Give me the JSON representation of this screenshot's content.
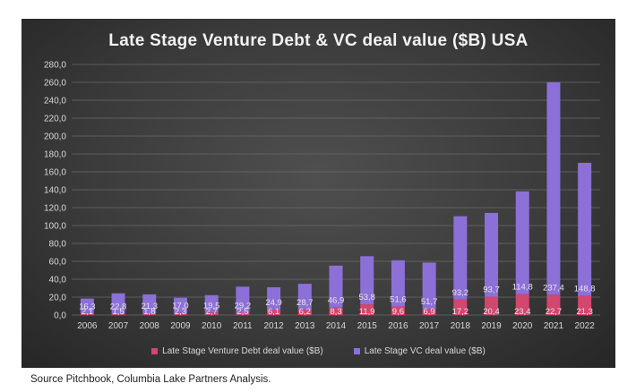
{
  "chart_data": {
    "type": "bar",
    "stacked": true,
    "title": "Late Stage Venture Debt & VC deal value ($B) USA",
    "categories": [
      "2006",
      "2007",
      "2008",
      "2009",
      "2010",
      "2011",
      "2012",
      "2013",
      "2014",
      "2015",
      "2016",
      "2017",
      "2018",
      "2019",
      "2020",
      "2021",
      "2022"
    ],
    "series": [
      {
        "name": "Late Stage Venture Debt deal value ($B)",
        "color": "#d2476e",
        "values": [
          2.1,
          1.5,
          1.8,
          2.3,
          2.7,
          2.5,
          6.1,
          6.2,
          8.3,
          11.9,
          9.6,
          6.9,
          17.2,
          20.4,
          23.4,
          22.7,
          21.3
        ],
        "labels": [
          "2,1",
          "1,5",
          "1,8",
          "2,3",
          "2,7",
          "2,5",
          "6,1",
          "6,2",
          "8,3",
          "11,9",
          "9,6",
          "6,9",
          "17,2",
          "20,4",
          "23,4",
          "22,7",
          "21,3"
        ]
      },
      {
        "name": "Late Stage VC deal value ($B)",
        "color": "#8c70d8",
        "values": [
          16.3,
          22.8,
          21.3,
          17.0,
          19.5,
          29.2,
          24.9,
          28.7,
          46.9,
          53.8,
          51.6,
          51.7,
          93.2,
          93.7,
          114.8,
          237.4,
          148.8
        ],
        "labels": [
          "16,3",
          "22,8",
          "21,3",
          "17,0",
          "19,5",
          "29,2",
          "24,9",
          "28,7",
          "46,9",
          "53,8",
          "51,6",
          "51,7",
          "93,2",
          "93,7",
          "114,8",
          "237,4",
          "148,8"
        ]
      }
    ],
    "ylim": [
      0,
      280
    ],
    "yticks": [
      "0,0",
      "20,0",
      "40,0",
      "60,0",
      "80,0",
      "100,0",
      "120,0",
      "140,0",
      "160,0",
      "180,0",
      "200,0",
      "220,0",
      "240,0",
      "260,0",
      "280,0"
    ],
    "grid": true,
    "legend_position": "bottom"
  },
  "source_note": "Source Pitchbook, Columbia Lake Partners Analysis."
}
